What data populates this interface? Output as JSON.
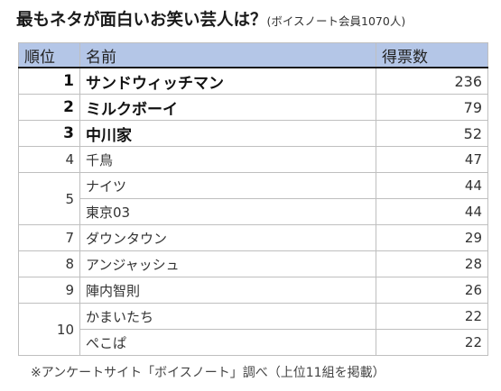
{
  "title": {
    "main": "最もネタが面白いお笑い芸人は？",
    "sub": "(ボイスノート会員1070人)"
  },
  "table": {
    "headers": {
      "rank": "順位",
      "name": "名前",
      "votes": "得票数"
    },
    "rows": [
      {
        "rank": "1",
        "name": "サンドウィッチマン",
        "votes": "236"
      },
      {
        "rank": "2",
        "name": "ミルクボーイ",
        "votes": "79"
      },
      {
        "rank": "3",
        "name": "中川家",
        "votes": "52"
      },
      {
        "rank": "4",
        "name": "千鳥",
        "votes": "47"
      },
      {
        "rank": "5",
        "name": "ナイツ",
        "votes": "44"
      },
      {
        "rank": "",
        "name": "東京03",
        "votes": "44"
      },
      {
        "rank": "7",
        "name": "ダウンタウン",
        "votes": "29"
      },
      {
        "rank": "8",
        "name": "アンジャッシュ",
        "votes": "28"
      },
      {
        "rank": "9",
        "name": "陣内智則",
        "votes": "26"
      },
      {
        "rank": "10",
        "name": "かまいたち",
        "votes": "22"
      },
      {
        "rank": "",
        "name": "ぺこぱ",
        "votes": "22"
      }
    ]
  },
  "footnote": "※アンケートサイト「ボイスノート」調べ（上位11組を掲載）"
}
